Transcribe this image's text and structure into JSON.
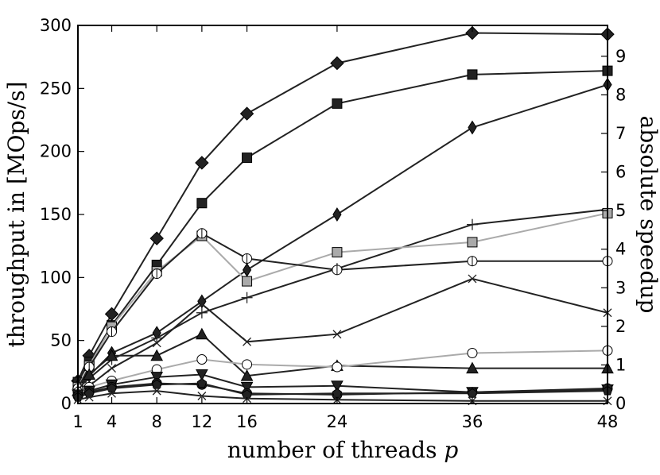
{
  "chart_data": {
    "type": "line",
    "title": "",
    "xlabel_text": "number of threads",
    "xlabel_var": "p",
    "ylabel": "throughput in [MOps/s]",
    "y2label": "absolute speedup",
    "x": [
      1,
      2,
      4,
      8,
      12,
      16,
      24,
      36,
      48
    ],
    "xticks": [
      1,
      4,
      8,
      12,
      16,
      24,
      36,
      48
    ],
    "xlim": [
      1,
      48
    ],
    "ylim": [
      0,
      300
    ],
    "yticks": [
      0,
      50,
      100,
      150,
      200,
      250,
      300
    ],
    "y2lim": [
      0,
      9.8
    ],
    "y2ticks": [
      0,
      1,
      2,
      3,
      4,
      5,
      6,
      7,
      8,
      9
    ],
    "grid": false,
    "series": [
      {
        "marker": "diamond",
        "color": "#222222",
        "values": [
          18,
          38,
          71,
          131,
          191,
          230,
          270,
          294,
          293
        ]
      },
      {
        "marker": "square",
        "color": "#222222",
        "values": [
          17,
          33,
          62,
          110,
          159,
          195,
          238,
          261,
          264
        ]
      },
      {
        "marker": "thin_diamond",
        "color": "#222222",
        "values": [
          14,
          22,
          40,
          56,
          81,
          106,
          150,
          219,
          253
        ]
      },
      {
        "marker": "plus",
        "color": "#222222",
        "values": [
          12,
          20,
          35,
          52,
          72,
          84,
          107,
          142,
          154
        ]
      },
      {
        "marker": "square",
        "color": "#aaaaaa",
        "values": [
          13,
          30,
          61,
          105,
          133,
          97,
          120,
          128,
          151
        ]
      },
      {
        "marker": "circle_bar",
        "color": "#222222",
        "values": [
          12,
          29,
          57,
          103,
          135,
          115,
          106,
          113,
          113
        ]
      },
      {
        "marker": "x",
        "color": "#222222",
        "values": [
          8,
          14,
          28,
          48,
          79,
          49,
          55,
          99,
          72
        ]
      },
      {
        "marker": "triangle_up",
        "color": "#222222",
        "values": [
          10,
          23,
          38,
          38,
          55,
          22,
          30,
          28,
          28
        ]
      },
      {
        "marker": "circle",
        "color": "#aaaaaa",
        "values": [
          9,
          13,
          18,
          27,
          35,
          31,
          29,
          40,
          42
        ]
      },
      {
        "marker": "triangle_down",
        "color": "#222222",
        "values": [
          7,
          10,
          15,
          21,
          23,
          13,
          14,
          9,
          11
        ]
      },
      {
        "marker": "circle",
        "color": "#222222",
        "values": [
          6,
          9,
          13,
          16,
          15,
          8,
          7,
          9,
          12
        ]
      },
      {
        "marker": "pentagon",
        "color": "#222222",
        "values": [
          5,
          8,
          12,
          15,
          16,
          7,
          8,
          8,
          10
        ]
      },
      {
        "marker": "x",
        "color": "#222222",
        "values": [
          3,
          5,
          8,
          10,
          6,
          4,
          3,
          2,
          2
        ]
      }
    ]
  }
}
